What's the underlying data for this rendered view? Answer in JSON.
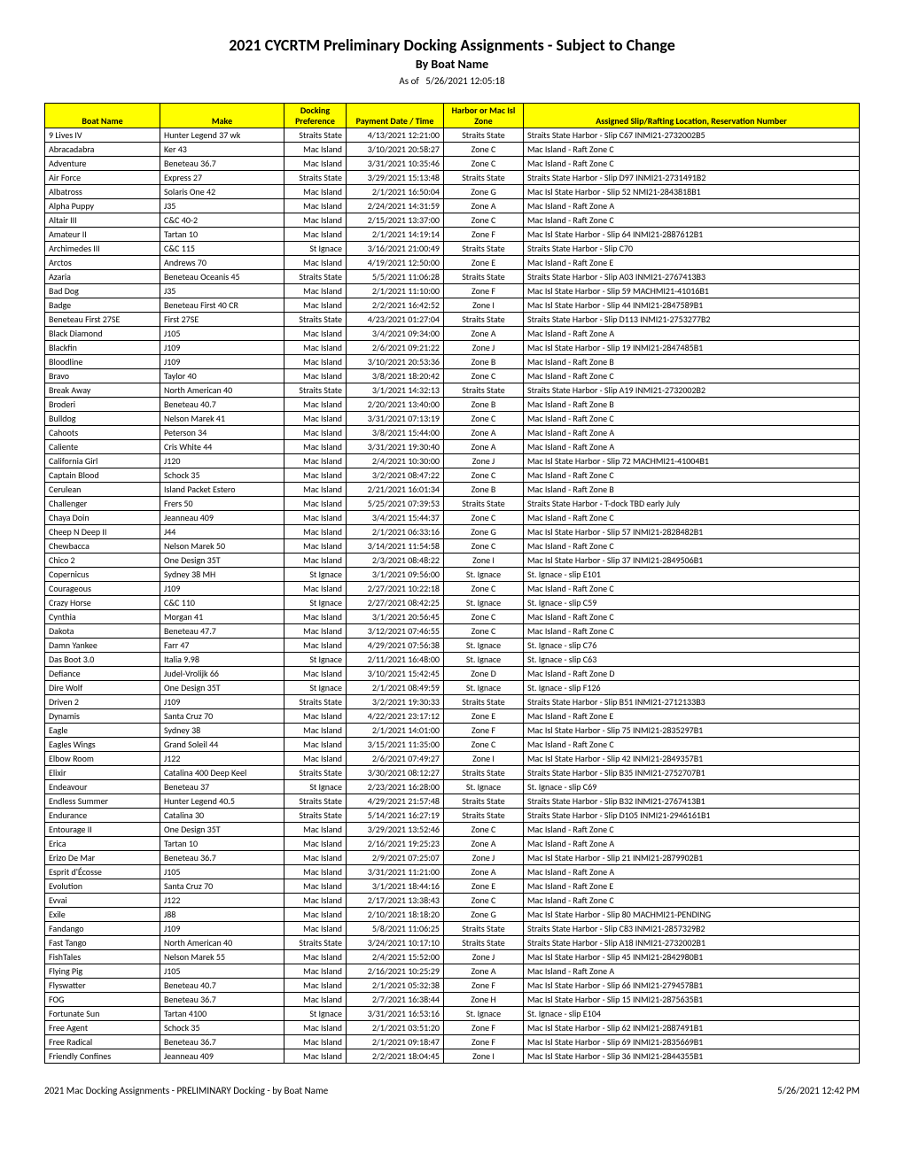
{
  "title": "2021 CYCRTM Preliminary Docking Assignments - Subject to Change",
  "subtitle": "By Boat Name",
  "asof_label": "As of",
  "asof_time": "5/26/2021 12:05:18",
  "footer_left": "2021 Mac Docking Assignments - PRELIMINARY  Docking - by Boat Name",
  "footer_right": "5/26/2021 12:42 PM",
  "headers": {
    "boat": "Boat Name",
    "make": "Make",
    "dock": "Docking Preference",
    "time": "Payment Date / Time",
    "zone": "Harbor or Mac Isl Zone",
    "assign": "Assigned Slip/Rafting Location, Reservation Number"
  },
  "rows": [
    {
      "boat": "9 Lives IV",
      "make": "Hunter Legend 37 wk",
      "dock": "Straits State",
      "time": "4/13/2021 12:21:00",
      "zone": "Straits State",
      "assign": "Straits State Harbor - Slip  C67  INMI21-2732002B5"
    },
    {
      "boat": "Abracadabra",
      "make": "Ker 43",
      "dock": "Mac Island",
      "time": "3/10/2021 20:58:27",
      "zone": "Zone C",
      "assign": "Mac Island - Raft Zone C"
    },
    {
      "boat": "Adventure",
      "make": "Beneteau 36.7",
      "dock": "Mac Island",
      "time": "3/31/2021 10:35:46",
      "zone": "Zone C",
      "assign": "Mac Island - Raft Zone C"
    },
    {
      "boat": "Air Force",
      "make": "Express 27",
      "dock": "Straits State",
      "time": "3/29/2021 15:13:48",
      "zone": "Straits State",
      "assign": "Straits State Harbor - Slip  D97  INMI21-2731491B2"
    },
    {
      "boat": "Albatross",
      "make": "Solaris One 42",
      "dock": "Mac Island",
      "time": "2/1/2021 16:50:04",
      "zone": "Zone G",
      "assign": "Mac Isl State Harbor - Slip 52  NMI21-2843818B1"
    },
    {
      "boat": "Alpha Puppy",
      "make": "J35",
      "dock": "Mac Island",
      "time": "2/24/2021 14:31:59",
      "zone": "Zone A",
      "assign": "Mac Island - Raft Zone A"
    },
    {
      "boat": "Altair III",
      "make": "C&C 40-2",
      "dock": "Mac Island",
      "time": "2/15/2021 13:37:00",
      "zone": "Zone C",
      "assign": "Mac Island - Raft Zone C"
    },
    {
      "boat": "Amateur II",
      "make": "Tartan 10",
      "dock": "Mac Island",
      "time": "2/1/2021 14:19:14",
      "zone": "Zone F",
      "assign": "Mac Isl State Harbor - Slip 64  INMI21-2887612B1"
    },
    {
      "boat": "Archimedes III",
      "make": "C&C 115",
      "dock": "St Ignace",
      "time": "3/16/2021 21:00:49",
      "zone": "Straits State",
      "assign": "Straits State Harbor - Slip  C70"
    },
    {
      "boat": "Arctos",
      "make": "Andrews 70",
      "dock": "Mac Island",
      "time": "4/19/2021 12:50:00",
      "zone": "Zone E",
      "assign": "Mac Island - Raft Zone E"
    },
    {
      "boat": "Azaria",
      "make": "Beneteau Oceanis 45",
      "dock": "Straits State",
      "time": "5/5/2021 11:06:28",
      "zone": "Straits State",
      "assign": "Straits State Harbor - Slip  A03  INMI21-2767413B3"
    },
    {
      "boat": "Bad Dog",
      "make": "J35",
      "dock": "Mac Island",
      "time": "2/1/2021 11:10:00",
      "zone": "Zone F",
      "assign": "Mac Isl State Harbor - Slip 59  MACHMI21-41016B1"
    },
    {
      "boat": "Badge",
      "make": "Beneteau First 40 CR",
      "dock": "Mac Island",
      "time": "2/2/2021 16:42:52",
      "zone": "Zone I",
      "assign": "Mac Isl State Harbor - Slip 44  INMI21-2847589B1"
    },
    {
      "boat": "Beneteau First 27SE",
      "make": "First 27SE",
      "dock": "Straits State",
      "time": "4/23/2021 01:27:04",
      "zone": "Straits State",
      "assign": "Straits State Harbor - Slip  D113  INMI21-2753277B2"
    },
    {
      "boat": "Black Diamond",
      "make": "J105",
      "dock": "Mac Island",
      "time": "3/4/2021 09:34:00",
      "zone": "Zone A",
      "assign": "Mac Island - Raft Zone A"
    },
    {
      "boat": "Blackfin",
      "make": "J109",
      "dock": "Mac Island",
      "time": "2/6/2021 09:21:22",
      "zone": "Zone J",
      "assign": "Mac Isl State Harbor - Slip 19  INMI21-2847485B1"
    },
    {
      "boat": "Bloodline",
      "make": "J109",
      "dock": "Mac Island",
      "time": "3/10/2021 20:53:36",
      "zone": "Zone B",
      "assign": "Mac Island - Raft Zone B"
    },
    {
      "boat": "Bravo",
      "make": "Taylor 40",
      "dock": "Mac Island",
      "time": "3/8/2021 18:20:42",
      "zone": "Zone C",
      "assign": "Mac Island - Raft Zone C"
    },
    {
      "boat": "Break Away",
      "make": "North American 40",
      "dock": "Straits State",
      "time": "3/1/2021 14:32:13",
      "zone": "Straits State",
      "assign": "Straits State Harbor - Slip  A19  INMI21-2732002B2"
    },
    {
      "boat": "Broderi",
      "make": "Beneteau 40.7",
      "dock": "Mac Island",
      "time": "2/20/2021 13:40:00",
      "zone": "Zone B",
      "assign": "Mac Island - Raft Zone B"
    },
    {
      "boat": "Bulldog",
      "make": "Nelson Marek 41",
      "dock": "Mac Island",
      "time": "3/31/2021 07:13:19",
      "zone": "Zone C",
      "assign": "Mac Island - Raft Zone C"
    },
    {
      "boat": "Cahoots",
      "make": "Peterson 34",
      "dock": "Mac Island",
      "time": "3/8/2021 15:44:00",
      "zone": "Zone A",
      "assign": "Mac Island - Raft Zone A"
    },
    {
      "boat": "Caliente",
      "make": "Cris White 44",
      "dock": "Mac Island",
      "time": "3/31/2021 19:30:40",
      "zone": "Zone A",
      "assign": "Mac Island - Raft Zone A"
    },
    {
      "boat": "California Girl",
      "make": "J120",
      "dock": "Mac Island",
      "time": "2/4/2021 10:30:00",
      "zone": "Zone J",
      "assign": "Mac Isl State Harbor - Slip 72  MACHMI21-41004B1"
    },
    {
      "boat": "Captain Blood",
      "make": "Schock 35",
      "dock": "Mac Island",
      "time": "3/2/2021 08:47:22",
      "zone": "Zone C",
      "assign": "Mac Island - Raft Zone C"
    },
    {
      "boat": "Cerulean",
      "make": "Island Packet Estero",
      "dock": "Mac Island",
      "time": "2/21/2021 16:01:34",
      "zone": "Zone B",
      "assign": "Mac Island - Raft Zone B"
    },
    {
      "boat": "Challenger",
      "make": "Frers 50",
      "dock": "Mac Island",
      "time": "5/25/2021 07:39:53",
      "zone": "Straits State",
      "assign": "Straits State Harbor - T-dock TBD early July"
    },
    {
      "boat": "Chaya Doin",
      "make": "Jeanneau 409",
      "dock": "Mac Island",
      "time": "3/4/2021 15:44:37",
      "zone": "Zone C",
      "assign": "Mac Island - Raft Zone C"
    },
    {
      "boat": "Cheep N Deep II",
      "make": "J44",
      "dock": "Mac Island",
      "time": "2/1/2021 06:33:16",
      "zone": "Zone G",
      "assign": "Mac Isl State Harbor - Slip 57  INMI21-2828482B1"
    },
    {
      "boat": "Chewbacca",
      "make": "Nelson Marek 50",
      "dock": "Mac Island",
      "time": "3/14/2021 11:54:58",
      "zone": "Zone C",
      "assign": "Mac Island - Raft Zone C"
    },
    {
      "boat": "Chico 2",
      "make": "One Design 35T",
      "dock": "Mac Island",
      "time": "2/3/2021 08:48:22",
      "zone": "Zone I",
      "assign": "Mac Isl State Harbor - Slip 37  INMI21-2849506B1"
    },
    {
      "boat": "Copernicus",
      "make": "Sydney 38 MH",
      "dock": "St Ignace",
      "time": "3/1/2021 09:56:00",
      "zone": "St. Ignace",
      "assign": "St. Ignace - slip E101"
    },
    {
      "boat": "Courageous",
      "make": "J109",
      "dock": "Mac Island",
      "time": "2/27/2021 10:22:18",
      "zone": "Zone C",
      "assign": "Mac Island - Raft Zone C"
    },
    {
      "boat": "Crazy Horse",
      "make": "C&C 110",
      "dock": "St Ignace",
      "time": "2/27/2021 08:42:25",
      "zone": "St. Ignace",
      "assign": "St. Ignace - slip C59"
    },
    {
      "boat": "Cynthia",
      "make": "Morgan 41",
      "dock": "Mac Island",
      "time": "3/1/2021 20:56:45",
      "zone": "Zone C",
      "assign": "Mac Island - Raft Zone C"
    },
    {
      "boat": "Dakota",
      "make": "Beneteau 47.7",
      "dock": "Mac Island",
      "time": "3/12/2021 07:46:55",
      "zone": "Zone C",
      "assign": "Mac Island - Raft Zone C"
    },
    {
      "boat": "Damn Yankee",
      "make": "Farr 47",
      "dock": "Mac Island",
      "time": "4/29/2021 07:56:38",
      "zone": "St. Ignace",
      "assign": "St. Ignace - slip C76"
    },
    {
      "boat": "Das Boot 3.0",
      "make": "Italia 9.98",
      "dock": "St Ignace",
      "time": "2/11/2021 16:48:00",
      "zone": "St. Ignace",
      "assign": "St. Ignace - slip C63"
    },
    {
      "boat": "Defiance",
      "make": "Judel-Vrolijk 66",
      "dock": "Mac Island",
      "time": "3/10/2021 15:42:45",
      "zone": "Zone D",
      "assign": "Mac Island - Raft Zone D"
    },
    {
      "boat": "Dire Wolf",
      "make": "One Design 35T",
      "dock": "St Ignace",
      "time": "2/1/2021 08:49:59",
      "zone": "St. Ignace",
      "assign": "St. Ignace - slip F126"
    },
    {
      "boat": "Driven 2",
      "make": "J109",
      "dock": "Straits State",
      "time": "3/2/2021 19:30:33",
      "zone": "Straits State",
      "assign": "Straits State Harbor - Slip  B51  INMI21-2712133B3"
    },
    {
      "boat": "Dynamis",
      "make": "Santa Cruz 70",
      "dock": "Mac Island",
      "time": "4/22/2021 23:17:12",
      "zone": "Zone E",
      "assign": "Mac Island - Raft Zone E"
    },
    {
      "boat": "Eagle",
      "make": "Sydney 38",
      "dock": "Mac Island",
      "time": "2/1/2021 14:01:00",
      "zone": "Zone F",
      "assign": "Mac Isl State Harbor - Slip 75  INMI21-2835297B1"
    },
    {
      "boat": "Eagles Wings",
      "make": "Grand Soleil 44",
      "dock": "Mac Island",
      "time": "3/15/2021 11:35:00",
      "zone": "Zone C",
      "assign": "Mac Island - Raft Zone C"
    },
    {
      "boat": "Elbow Room",
      "make": "J122",
      "dock": "Mac Island",
      "time": "2/6/2021 07:49:27",
      "zone": "Zone I",
      "assign": "Mac Isl State Harbor - Slip 42  INMI21-2849357B1"
    },
    {
      "boat": "Elixir",
      "make": "Catalina 400 Deep Keel",
      "dock": "Straits State",
      "time": "3/30/2021 08:12:27",
      "zone": "Straits State",
      "assign": "Straits State Harbor - Slip  B35  INMI21-2752707B1"
    },
    {
      "boat": "Endeavour",
      "make": "Beneteau 37",
      "dock": "St Ignace",
      "time": "2/23/2021 16:28:00",
      "zone": "St. Ignace",
      "assign": "St. Ignace - slip C69"
    },
    {
      "boat": "Endless Summer",
      "make": "Hunter Legend 40.5",
      "dock": "Straits State",
      "time": "4/29/2021 21:57:48",
      "zone": "Straits State",
      "assign": "Straits State Harbor - Slip  B32  INMI21-2767413B1"
    },
    {
      "boat": "Endurance",
      "make": "Catalina 30",
      "dock": "Straits State",
      "time": "5/14/2021 16:27:19",
      "zone": "Straits State",
      "assign": "Straits State Harbor - Slip D105 INMI21-2946161B1"
    },
    {
      "boat": "Entourage II",
      "make": "One Design 35T",
      "dock": "Mac Island",
      "time": "3/29/2021 13:52:46",
      "zone": "Zone C",
      "assign": "Mac Island - Raft Zone C"
    },
    {
      "boat": "Erica",
      "make": "Tartan 10",
      "dock": "Mac Island",
      "time": "2/16/2021 19:25:23",
      "zone": "Zone A",
      "assign": "Mac Island - Raft Zone A"
    },
    {
      "boat": "Erizo De Mar",
      "make": "Beneteau 36.7",
      "dock": "Mac Island",
      "time": "2/9/2021 07:25:07",
      "zone": "Zone J",
      "assign": "Mac Isl State Harbor - Slip 21  INMI21-2879902B1"
    },
    {
      "boat": "Esprit d'Écosse",
      "make": "J105",
      "dock": "Mac Island",
      "time": "3/31/2021 11:21:00",
      "zone": "Zone A",
      "assign": "Mac Island - Raft Zone A"
    },
    {
      "boat": "Evolution",
      "make": "Santa Cruz 70",
      "dock": "Mac Island",
      "time": "3/1/2021 18:44:16",
      "zone": "Zone E",
      "assign": "Mac Island - Raft Zone E"
    },
    {
      "boat": "Evvai",
      "make": "J122",
      "dock": "Mac Island",
      "time": "2/17/2021 13:38:43",
      "zone": "Zone C",
      "assign": "Mac Island - Raft Zone C"
    },
    {
      "boat": "Exile",
      "make": "J88",
      "dock": "Mac Island",
      "time": "2/10/2021 18:18:20",
      "zone": "Zone G",
      "assign": "Mac Isl State Harbor - Slip 80  MACHMI21-PENDING"
    },
    {
      "boat": "Fandango",
      "make": "J109",
      "dock": "Mac Island",
      "time": "5/8/2021 11:06:25",
      "zone": "Straits State",
      "assign": "Straits State Harbor - Slip  C83  INMI21-2857329B2"
    },
    {
      "boat": "Fast Tango",
      "make": "North American 40",
      "dock": "Straits State",
      "time": "3/24/2021 10:17:10",
      "zone": "Straits State",
      "assign": "Straits State Harbor - Slip  A18  INMI21-2732002B1"
    },
    {
      "boat": "FishTales",
      "make": "Nelson Marek 55",
      "dock": "Mac Island",
      "time": "2/4/2021 15:52:00",
      "zone": "Zone J",
      "assign": "Mac Isl State Harbor - Slip 45  INMI21-2842980B1"
    },
    {
      "boat": "Flying Pig",
      "make": "J105",
      "dock": "Mac Island",
      "time": "2/16/2021 10:25:29",
      "zone": "Zone A",
      "assign": "Mac Island - Raft Zone A"
    },
    {
      "boat": "Flyswatter",
      "make": "Beneteau 40.7",
      "dock": "Mac Island",
      "time": "2/1/2021 05:32:38",
      "zone": "Zone F",
      "assign": "Mac Isl State Harbor - Slip 66  INMI21-2794578B1"
    },
    {
      "boat": "FOG",
      "make": "Beneteau 36.7",
      "dock": "Mac Island",
      "time": "2/7/2021 16:38:44",
      "zone": "Zone H",
      "assign": "Mac Isl State Harbor - Slip 15  INMI21-2875635B1"
    },
    {
      "boat": "Fortunate Sun",
      "make": "Tartan 4100",
      "dock": "St Ignace",
      "time": "3/31/2021 16:53:16",
      "zone": "St. Ignace",
      "assign": "St. Ignace - slip E104"
    },
    {
      "boat": "Free Agent",
      "make": "Schock 35",
      "dock": "Mac Island",
      "time": "2/1/2021 03:51:20",
      "zone": "Zone F",
      "assign": "Mac Isl State Harbor - Slip 62  INMI21-2887491B1"
    },
    {
      "boat": "Free Radical",
      "make": "Beneteau 36.7",
      "dock": "Mac Island",
      "time": "2/1/2021 09:18:47",
      "zone": "Zone F",
      "assign": "Mac Isl State Harbor - Slip 69  INMI21-2835669B1"
    },
    {
      "boat": "Friendly Confines",
      "make": "Jeanneau 409",
      "dock": "Mac Island",
      "time": "2/2/2021 18:04:45",
      "zone": "Zone I",
      "assign": "Mac Isl State Harbor - Slip 36  INMI21-2844355B1"
    }
  ]
}
